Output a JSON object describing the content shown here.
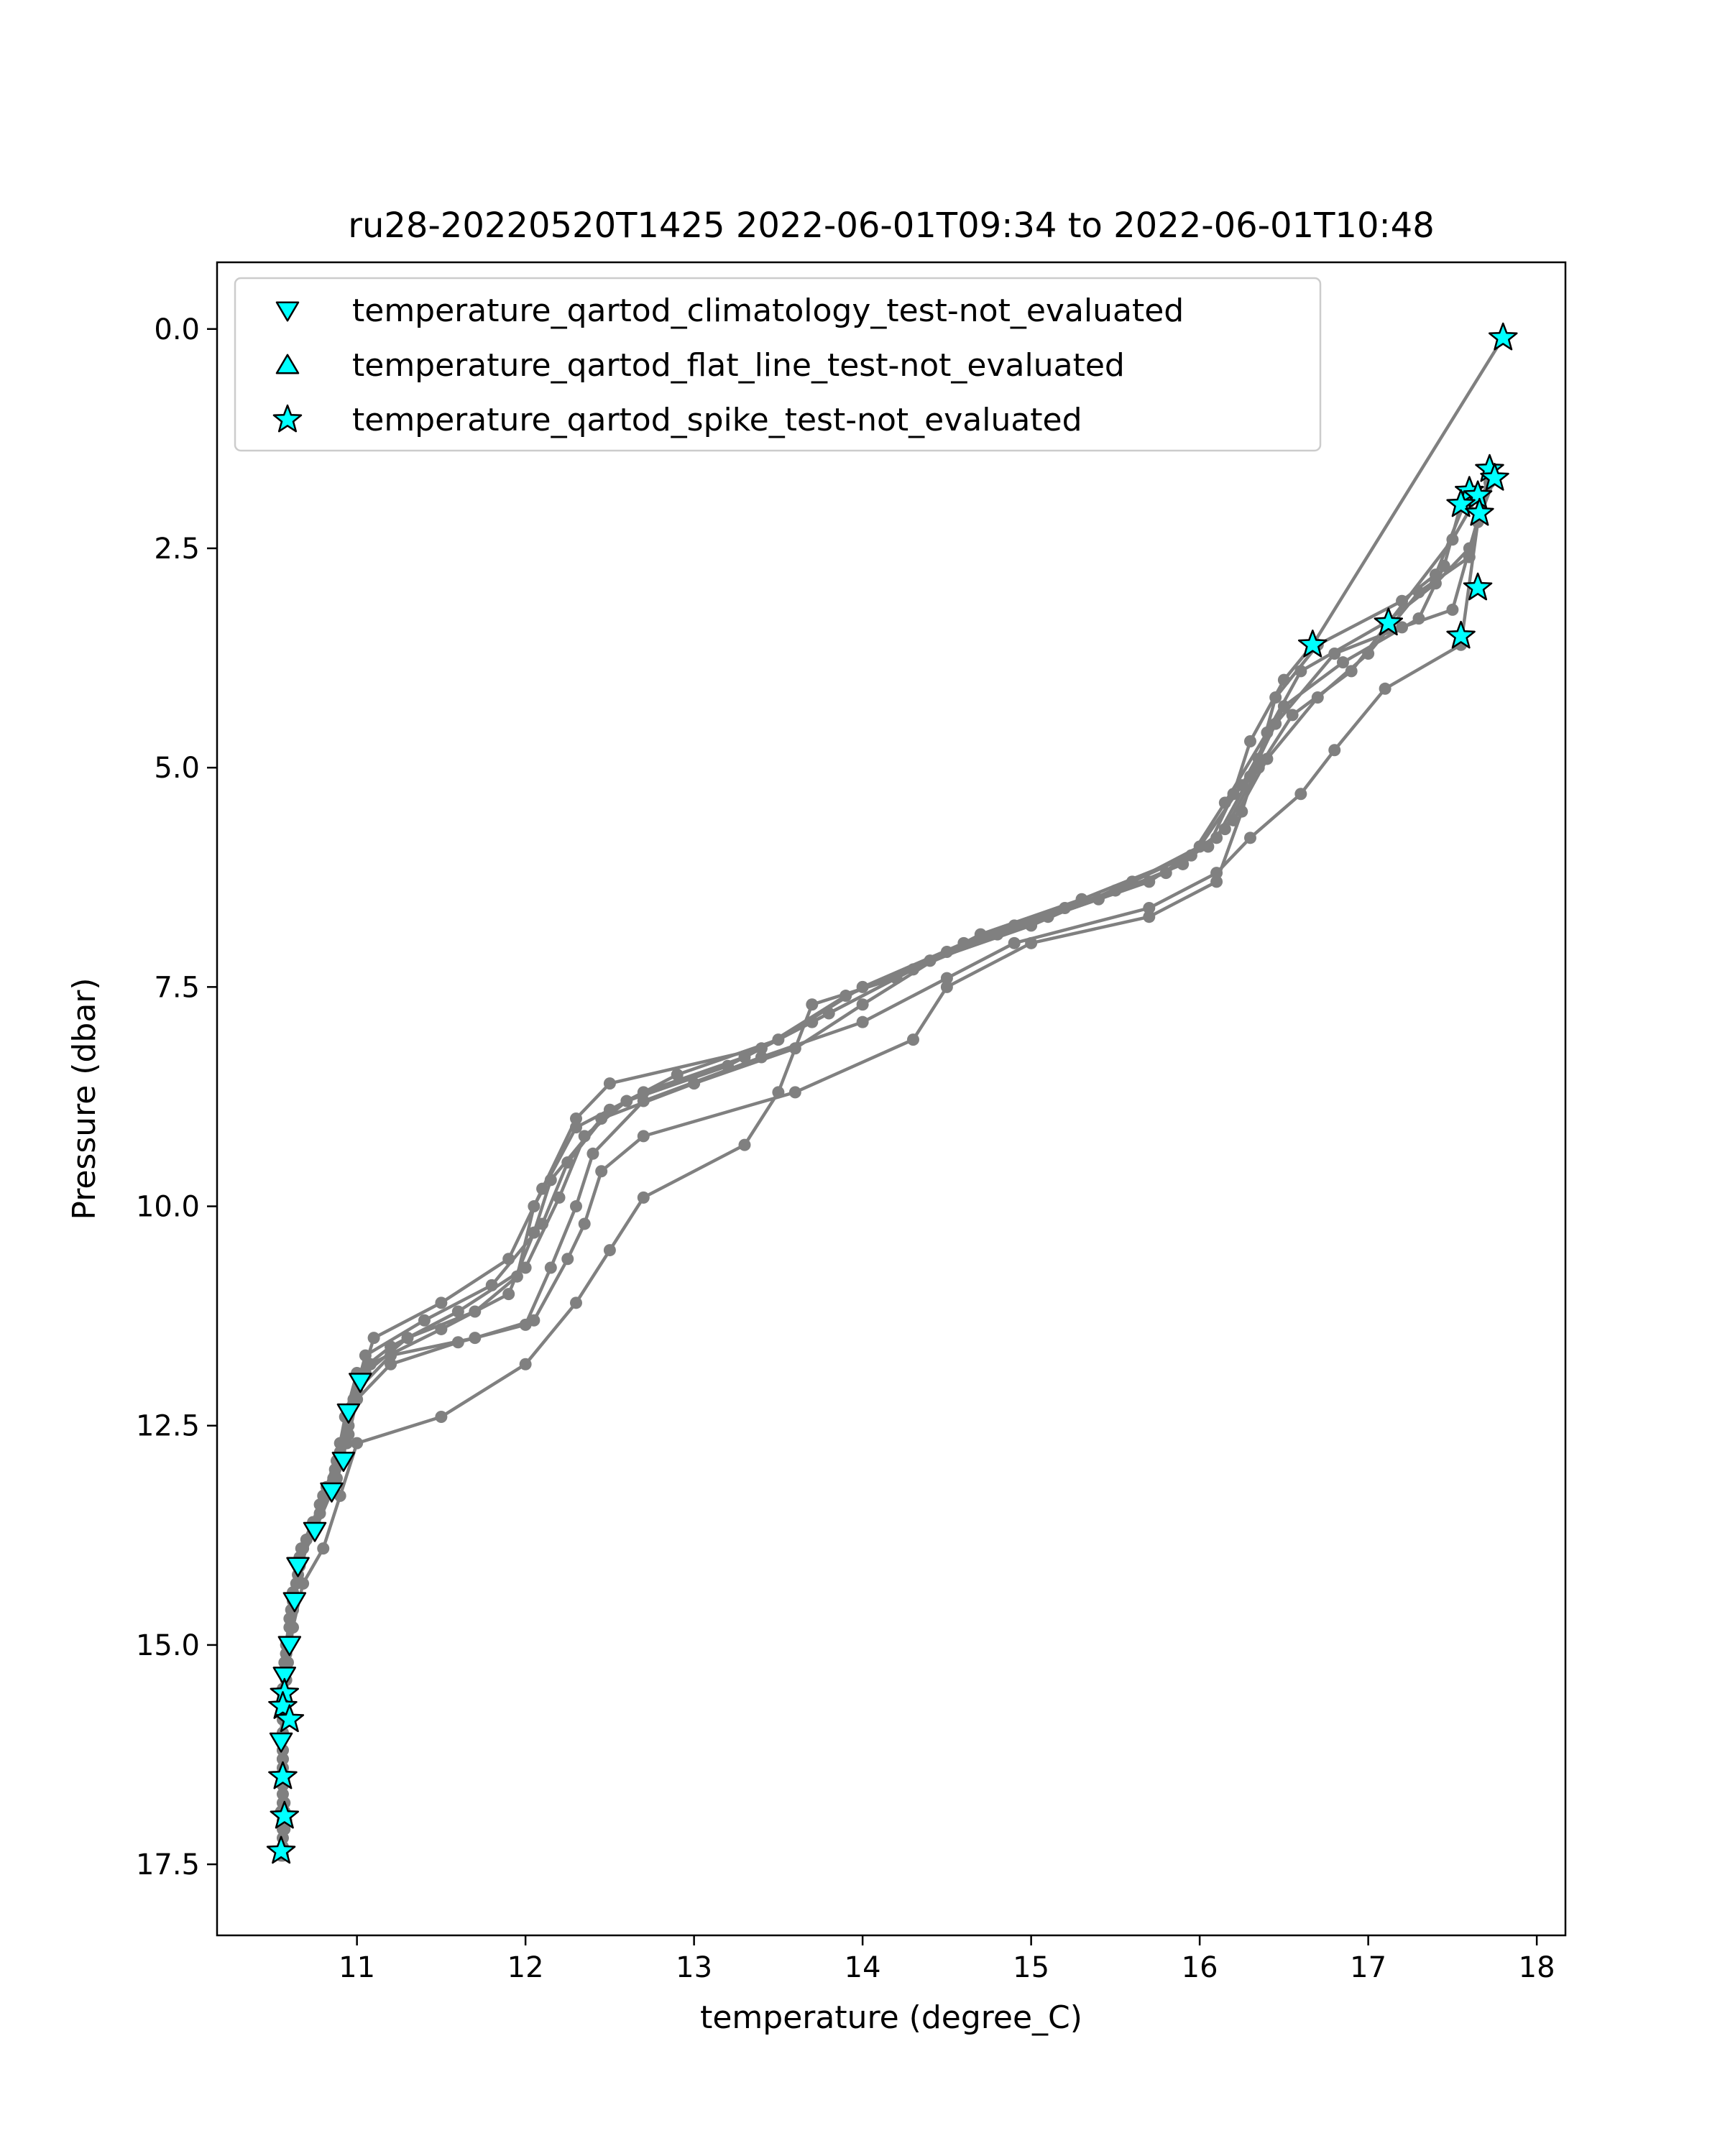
{
  "chart_data": {
    "type": "line",
    "title": "ru28-20220520T1425 2022-06-01T09:34 to 2022-06-01T10:48",
    "xlabel": "temperature (degree_C)",
    "ylabel": "Pressure (dbar)",
    "xlim": [
      10.17,
      18.17
    ],
    "ylim": [
      18.31,
      -0.76
    ],
    "y_inverted": true,
    "grid": false,
    "legend_position": "top-left",
    "x_ticks": [
      "11",
      "12",
      "13",
      "14",
      "15",
      "16",
      "17",
      "18"
    ],
    "y_ticks": [
      "0.0",
      "2.5",
      "5.0",
      "7.5",
      "10.0",
      "12.5",
      "15.0",
      "17.5"
    ],
    "line_color": "#808080",
    "marker_fill": "#00ffff",
    "marker_edge": "#000000",
    "legend": [
      {
        "label": "temperature_qartod_climatology_test-not_evaluated",
        "marker": "triangle-down"
      },
      {
        "label": "temperature_qartod_flat_line_test-not_evaluated",
        "marker": "triangle-up"
      },
      {
        "label": "temperature_qartod_spike_test-not_evaluated",
        "marker": "star"
      }
    ],
    "profiles": [
      [
        [
          17.8,
          0.1
        ],
        [
          16.67,
          3.6
        ],
        [
          16.5,
          4.0
        ],
        [
          16.3,
          4.7
        ],
        [
          16.2,
          5.3
        ],
        [
          16.05,
          5.9
        ],
        [
          15.6,
          6.3
        ],
        [
          15.0,
          6.8
        ],
        [
          14.4,
          7.2
        ],
        [
          13.9,
          7.6
        ],
        [
          13.4,
          8.2
        ],
        [
          12.5,
          8.6
        ],
        [
          12.3,
          9.0
        ],
        [
          12.1,
          9.8
        ],
        [
          11.9,
          10.6
        ],
        [
          11.5,
          11.1
        ],
        [
          11.1,
          11.5
        ],
        [
          11.02,
          12.0
        ],
        [
          10.95,
          12.35
        ],
        [
          10.92,
          12.9
        ],
        [
          10.85,
          13.25
        ],
        [
          10.75,
          13.7
        ],
        [
          10.65,
          14.1
        ],
        [
          10.63,
          14.5
        ],
        [
          10.6,
          15.0
        ],
        [
          10.57,
          15.6
        ],
        [
          10.55,
          16.1
        ],
        [
          10.56,
          16.5
        ],
        [
          10.57,
          16.9
        ],
        [
          10.55,
          17.35
        ]
      ],
      [
        [
          17.72,
          1.6
        ],
        [
          17.6,
          2.6
        ],
        [
          17.3,
          3.0
        ],
        [
          17.0,
          3.7
        ],
        [
          16.7,
          4.2
        ],
        [
          16.4,
          4.9
        ],
        [
          16.2,
          5.6
        ],
        [
          15.9,
          6.1
        ],
        [
          15.4,
          6.5
        ],
        [
          14.8,
          6.9
        ],
        [
          14.3,
          7.3
        ],
        [
          13.7,
          7.9
        ],
        [
          13.2,
          8.4
        ],
        [
          12.6,
          8.8
        ],
        [
          12.35,
          9.2
        ],
        [
          12.2,
          9.9
        ],
        [
          12.0,
          10.7
        ],
        [
          11.6,
          11.2
        ],
        [
          11.2,
          11.6
        ],
        [
          11.0,
          11.9
        ],
        [
          10.93,
          12.4
        ],
        [
          10.88,
          12.9
        ],
        [
          10.78,
          13.4
        ],
        [
          10.67,
          13.9
        ],
        [
          10.62,
          14.4
        ],
        [
          10.58,
          15.0
        ],
        [
          10.56,
          15.5
        ],
        [
          10.56,
          16.0
        ],
        [
          10.57,
          16.5
        ],
        [
          10.58,
          17.0
        ]
      ],
      [
        [
          17.65,
          1.9
        ],
        [
          17.5,
          2.4
        ],
        [
          17.12,
          3.35
        ],
        [
          16.9,
          3.9
        ],
        [
          16.55,
          4.4
        ],
        [
          16.35,
          5.0
        ],
        [
          16.15,
          5.7
        ],
        [
          15.8,
          6.2
        ],
        [
          15.2,
          6.6
        ],
        [
          14.6,
          7.0
        ],
        [
          14.0,
          7.5
        ],
        [
          13.5,
          8.1
        ],
        [
          12.9,
          8.5
        ],
        [
          12.5,
          8.9
        ],
        [
          12.25,
          9.5
        ],
        [
          12.1,
          10.2
        ],
        [
          11.8,
          10.9
        ],
        [
          11.4,
          11.3
        ],
        [
          11.05,
          11.7
        ],
        [
          10.98,
          12.2
        ],
        [
          10.9,
          12.7
        ],
        [
          10.82,
          13.2
        ],
        [
          10.7,
          13.8
        ],
        [
          10.64,
          14.3
        ],
        [
          10.6,
          14.8
        ],
        [
          10.57,
          15.3
        ],
        [
          10.56,
          15.8
        ],
        [
          10.56,
          16.3
        ],
        [
          10.56,
          16.8
        ],
        [
          10.56,
          17.3
        ]
      ],
      [
        [
          17.55,
          2.0
        ],
        [
          17.45,
          2.7
        ],
        [
          17.3,
          3.3
        ],
        [
          16.85,
          3.8
        ],
        [
          16.5,
          4.3
        ],
        [
          16.3,
          5.1
        ],
        [
          16.1,
          5.8
        ],
        [
          15.7,
          6.3
        ],
        [
          15.1,
          6.7
        ],
        [
          14.5,
          7.1
        ],
        [
          14.0,
          7.7
        ],
        [
          13.6,
          8.2
        ],
        [
          13.0,
          8.6
        ],
        [
          12.45,
          9.0
        ],
        [
          12.15,
          9.7
        ],
        [
          12.05,
          10.3
        ],
        [
          11.9,
          11.0
        ],
        [
          11.5,
          11.4
        ],
        [
          11.08,
          11.8
        ],
        [
          10.96,
          12.3
        ],
        [
          10.9,
          12.8
        ],
        [
          10.8,
          13.3
        ],
        [
          10.68,
          13.9
        ],
        [
          10.62,
          14.5
        ],
        [
          10.58,
          15.1
        ],
        [
          10.56,
          15.55
        ],
        [
          10.55,
          16.1
        ],
        [
          10.56,
          16.6
        ],
        [
          10.56,
          17.1
        ],
        [
          10.55,
          17.4
        ]
      ],
      [
        [
          17.66,
          2.1
        ],
        [
          17.5,
          3.2
        ],
        [
          17.2,
          3.4
        ],
        [
          16.8,
          3.7
        ],
        [
          16.45,
          4.5
        ],
        [
          16.25,
          5.2
        ],
        [
          16.0,
          5.9
        ],
        [
          15.5,
          6.4
        ],
        [
          14.9,
          6.8
        ],
        [
          14.4,
          7.2
        ],
        [
          13.8,
          7.8
        ],
        [
          13.3,
          8.3
        ],
        [
          12.7,
          8.7
        ],
        [
          12.3,
          9.1
        ],
        [
          12.05,
          10.0
        ],
        [
          11.95,
          10.8
        ],
        [
          11.7,
          11.2
        ],
        [
          11.3,
          11.5
        ],
        [
          11.05,
          11.9
        ],
        [
          10.95,
          12.5
        ],
        [
          10.87,
          13.0
        ],
        [
          10.78,
          13.5
        ],
        [
          10.66,
          14.0
        ],
        [
          10.62,
          14.6
        ],
        [
          10.59,
          15.2
        ],
        [
          10.57,
          15.7
        ],
        [
          10.56,
          16.2
        ],
        [
          10.56,
          16.7
        ],
        [
          10.56,
          17.2
        ],
        [
          10.55,
          17.35
        ]
      ],
      [
        [
          17.72,
          1.75
        ],
        [
          17.6,
          2.5
        ],
        [
          17.4,
          2.9
        ],
        [
          17.1,
          3.35
        ],
        [
          16.6,
          3.9
        ],
        [
          16.4,
          4.6
        ],
        [
          16.15,
          5.4
        ],
        [
          15.95,
          6.0
        ],
        [
          15.3,
          6.5
        ],
        [
          14.7,
          6.9
        ],
        [
          14.2,
          7.4
        ],
        [
          13.7,
          7.7
        ],
        [
          13.5,
          8.7
        ],
        [
          13.3,
          9.3
        ],
        [
          12.7,
          9.9
        ],
        [
          12.5,
          10.5
        ],
        [
          12.3,
          11.1
        ],
        [
          12.0,
          11.8
        ],
        [
          11.5,
          12.4
        ],
        [
          11.0,
          12.7
        ],
        [
          10.9,
          13.3
        ],
        [
          10.8,
          13.9
        ],
        [
          10.68,
          14.3
        ],
        [
          10.62,
          14.8
        ],
        [
          10.58,
          15.4
        ],
        [
          10.56,
          15.85
        ],
        [
          10.56,
          16.3
        ],
        [
          10.57,
          16.8
        ],
        [
          10.57,
          17.1
        ],
        [
          10.56,
          17.4
        ]
      ],
      [
        [
          17.6,
          1.85
        ],
        [
          17.4,
          2.8
        ],
        [
          17.2,
          3.1
        ],
        [
          16.7,
          3.6
        ],
        [
          16.45,
          4.2
        ],
        [
          16.35,
          4.9
        ],
        [
          16.25,
          5.5
        ],
        [
          16.1,
          6.3
        ],
        [
          15.7,
          6.7
        ],
        [
          15.0,
          7.0
        ],
        [
          14.5,
          7.5
        ],
        [
          14.3,
          8.1
        ],
        [
          13.6,
          8.7
        ],
        [
          12.7,
          9.2
        ],
        [
          12.45,
          9.6
        ],
        [
          12.35,
          10.2
        ],
        [
          12.25,
          10.6
        ],
        [
          12.05,
          11.3
        ],
        [
          11.7,
          11.5
        ],
        [
          11.2,
          11.7
        ],
        [
          11.0,
          12.1
        ],
        [
          10.95,
          12.6
        ],
        [
          10.88,
          13.1
        ],
        [
          10.75,
          13.6
        ],
        [
          10.65,
          14.2
        ],
        [
          10.6,
          14.7
        ],
        [
          10.57,
          15.2
        ],
        [
          10.56,
          15.7
        ],
        [
          10.56,
          16.2
        ],
        [
          10.55,
          16.9
        ]
      ],
      [
        [
          17.75,
          1.7
        ],
        [
          17.65,
          2.2
        ],
        [
          17.55,
          3.6
        ],
        [
          17.1,
          4.1
        ],
        [
          16.8,
          4.8
        ],
        [
          16.6,
          5.3
        ],
        [
          16.3,
          5.8
        ],
        [
          16.1,
          6.2
        ],
        [
          15.7,
          6.6
        ],
        [
          14.9,
          7.0
        ],
        [
          14.5,
          7.4
        ],
        [
          14.0,
          7.9
        ],
        [
          13.4,
          8.3
        ],
        [
          12.7,
          8.8
        ],
        [
          12.4,
          9.4
        ],
        [
          12.3,
          10.0
        ],
        [
          12.15,
          10.7
        ],
        [
          12.0,
          11.35
        ],
        [
          11.6,
          11.55
        ],
        [
          11.2,
          11.8
        ],
        [
          11.0,
          12.2
        ],
        [
          10.94,
          12.7
        ],
        [
          10.86,
          13.1
        ],
        [
          10.74,
          13.6
        ],
        [
          10.66,
          14.1
        ],
        [
          10.61,
          14.6
        ],
        [
          10.58,
          15.1
        ],
        [
          10.57,
          15.6
        ],
        [
          10.56,
          16.4
        ],
        [
          10.56,
          17.0
        ]
      ]
    ],
    "climatology_points": [
      [
        11.02,
        12.0
      ],
      [
        10.95,
        12.35
      ],
      [
        10.92,
        12.9
      ],
      [
        10.85,
        13.25
      ],
      [
        10.75,
        13.7
      ],
      [
        10.65,
        14.1
      ],
      [
        10.63,
        14.5
      ],
      [
        10.6,
        15.0
      ],
      [
        10.57,
        15.35
      ],
      [
        10.55,
        16.1
      ]
    ],
    "flat_line_points": [],
    "spike_points": [
      [
        17.8,
        0.1
      ],
      [
        17.72,
        1.6
      ],
      [
        17.75,
        1.7
      ],
      [
        17.6,
        1.85
      ],
      [
        17.65,
        1.9
      ],
      [
        17.55,
        2.0
      ],
      [
        17.66,
        2.1
      ],
      [
        17.65,
        2.95
      ],
      [
        17.55,
        3.5
      ],
      [
        17.12,
        3.35
      ],
      [
        16.67,
        3.6
      ],
      [
        10.57,
        15.55
      ],
      [
        10.56,
        15.7
      ],
      [
        10.6,
        15.85
      ],
      [
        10.56,
        16.5
      ],
      [
        10.57,
        16.95
      ],
      [
        10.55,
        17.35
      ]
    ]
  }
}
